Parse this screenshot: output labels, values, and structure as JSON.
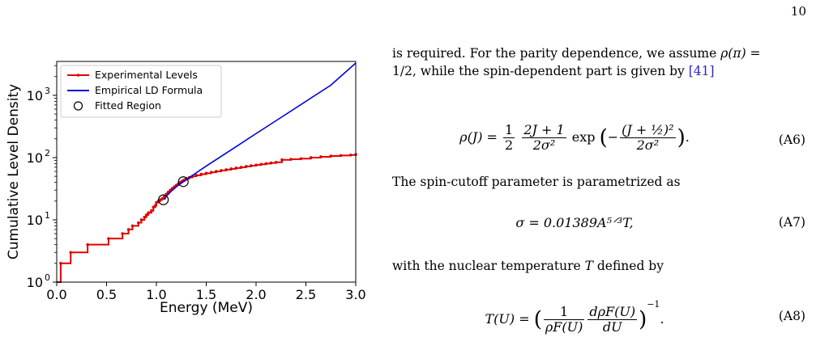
{
  "page": {
    "number": "10"
  },
  "chart_data": {
    "type": "line",
    "xlabel": "Energy (MeV)",
    "ylabel": "Cumulative Level Density",
    "xlim": [
      0.0,
      3.0
    ],
    "ylim": [
      1,
      3500
    ],
    "yscale": "log",
    "xticks": [
      "0.0",
      "0.5",
      "1.0",
      "1.5",
      "2.0",
      "2.5",
      "3.0"
    ],
    "yticks": [
      {
        "base": "10",
        "exp": "0"
      },
      {
        "base": "10",
        "exp": "1"
      },
      {
        "base": "10",
        "exp": "2"
      },
      {
        "base": "10",
        "exp": "3"
      }
    ],
    "grid": false,
    "legend_position": "top-left",
    "legend": [
      "Experimental Levels",
      "Empirical LD Formula",
      "Fitted Region"
    ],
    "series": [
      {
        "name": "Experimental Levels",
        "color": "#e00000",
        "style": "step",
        "x": [
          0.0,
          0.04,
          0.14,
          0.31,
          0.52,
          0.66,
          0.72,
          0.76,
          0.82,
          0.85,
          0.88,
          0.9,
          0.92,
          0.95,
          0.97,
          0.99,
          1.0,
          1.02,
          1.04,
          1.06,
          1.08,
          1.1,
          1.12,
          1.14,
          1.16,
          1.18,
          1.2,
          1.22,
          1.24,
          1.26,
          1.28,
          1.3,
          1.33,
          1.36,
          1.4,
          1.45,
          1.5,
          1.55,
          1.6,
          1.65,
          1.7,
          1.75,
          1.8,
          1.85,
          1.9,
          1.95,
          2.0,
          2.05,
          2.1,
          2.15,
          2.2,
          2.26,
          2.35,
          2.45,
          2.55,
          2.65,
          2.75,
          2.85,
          2.95,
          3.0
        ],
        "y": [
          1,
          2,
          3,
          4,
          5,
          6,
          7,
          8,
          9,
          10,
          11,
          12,
          13,
          14,
          16,
          17,
          19,
          20,
          21,
          22,
          24,
          26,
          28,
          30,
          32,
          34,
          36,
          38,
          40,
          42,
          44,
          46,
          48,
          50,
          52,
          54,
          56,
          58,
          60,
          62,
          64,
          66,
          68,
          70,
          72,
          74,
          76,
          78,
          80,
          82,
          84,
          92,
          94,
          96,
          100,
          103,
          106,
          108,
          110,
          112
        ]
      },
      {
        "name": "Empirical LD Formula",
        "color": "#0000dd",
        "style": "line",
        "x": [
          1.08,
          1.1,
          1.15,
          1.2,
          1.25,
          1.3,
          1.4,
          1.5,
          1.75,
          2.0,
          2.25,
          2.5,
          2.75,
          3.0
        ],
        "y": [
          21,
          24,
          29,
          34,
          39,
          44,
          57,
          73,
          133,
          243,
          440,
          800,
          1455,
          3300
        ]
      },
      {
        "name": "Fitted Region",
        "color": "#000000",
        "style": "marker",
        "x": [
          1.07,
          1.27
        ],
        "y": [
          21,
          41
        ]
      }
    ]
  },
  "text": {
    "p1a": "is required. For the parity dependence, we assume ",
    "p1b": "ρ(π) =",
    "p1c": "1/2, while the spin-dependent part is given by ",
    "p1cite": "[41]",
    "eq6": {
      "lhs": "ρ(J) =",
      "half_num": "1",
      "half_den": "2",
      "frac_num": "2J + 1",
      "frac_den": "2σ²",
      "exp": "exp",
      "exp_num": "(J + ½)²",
      "exp_den": "2σ²",
      "tag": "(A6)"
    },
    "p2": "The spin-cutoff parameter is parametrized as",
    "eq7": {
      "expr": "σ = 0.01389A⁵ᐟ³T,",
      "tag": "(A7)"
    },
    "p3a": "with the nuclear temperature ",
    "p3b": "T",
    "p3c": " defined by",
    "eq8": {
      "lhs": "T(U) =",
      "f1_num": "1",
      "f1_den": "ρF(U)",
      "f2_num": "dρF(U)",
      "f2_den": "dU",
      "power": "−1",
      "tail": ".",
      "tag": "(A8)"
    }
  }
}
